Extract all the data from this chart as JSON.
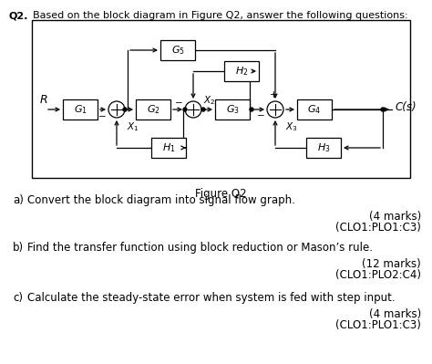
{
  "title_prefix": "Q2.",
  "title_text": "Based on the block diagram in Figure Q2, answer the following questions:",
  "figure_label": "Figure Q2",
  "bg_color": "#ffffff",
  "questions": [
    {
      "label": "a)",
      "text": "Convert the block diagram into signal flow graph.",
      "marks": "(4 marks)",
      "clo": "(CLO1:PLO1:C3)"
    },
    {
      "label": "b)",
      "text": "Find the transfer function using block reduction or Mason’s rule.",
      "marks": "(12 marks)",
      "clo": "(CLO1:PLO2:C4)"
    },
    {
      "label": "c)",
      "text": "Calculate the steady-state error when system is fed with step input.",
      "marks": "(4 marks)",
      "clo": "(CLO1:PLO1:C3)"
    }
  ]
}
